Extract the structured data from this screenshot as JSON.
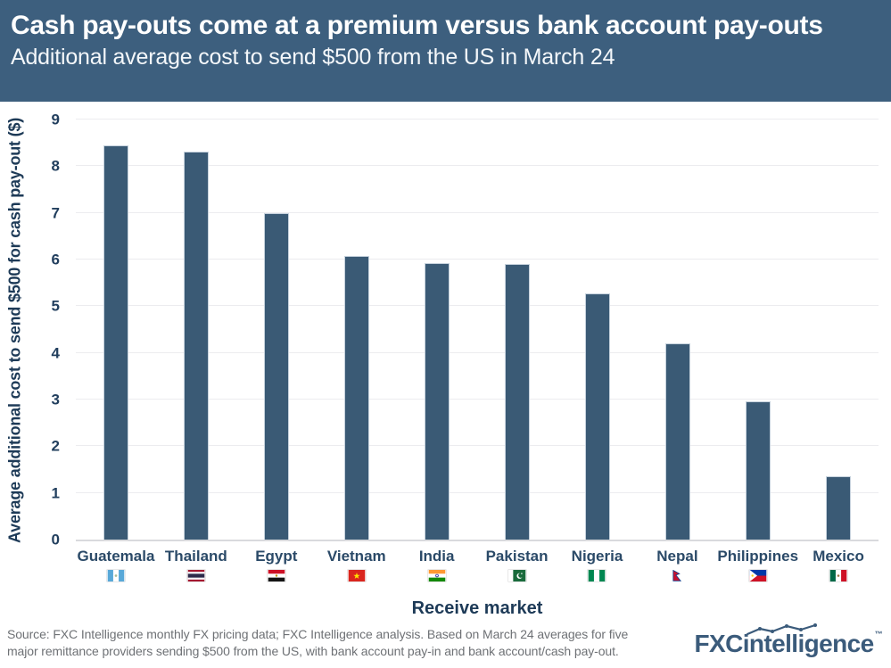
{
  "header": {
    "title": "Cash pay-outs come at a premium versus bank account pay-outs",
    "subtitle": "Additional average cost to send $500 from the US in March 24"
  },
  "chart_data": {
    "type": "bar",
    "title": "Cash pay-outs come at a premium versus bank account pay-outs",
    "subtitle": "Additional average cost to send $500 from the US in March 24",
    "categories": [
      "Guatemala",
      "Thailand",
      "Egypt",
      "Vietnam",
      "India",
      "Pakistan",
      "Nigeria",
      "Nepal",
      "Philippines",
      "Mexico"
    ],
    "values": [
      8.45,
      8.32,
      7.0,
      6.08,
      5.93,
      5.9,
      5.27,
      4.21,
      2.96,
      1.36
    ],
    "flags": [
      "guatemala",
      "thailand",
      "egypt",
      "vietnam",
      "india",
      "pakistan",
      "nigeria",
      "nepal",
      "philippines",
      "mexico"
    ],
    "xlabel": "Receive market",
    "ylabel": "Average additional cost to send $500 for cash pay-out ($)",
    "ylim": [
      0,
      9
    ],
    "yticks": [
      0,
      1,
      2,
      3,
      4,
      5,
      6,
      7,
      8,
      9
    ],
    "grid": true,
    "legend": "none",
    "bar_color": "#3a5a75"
  },
  "colors": {
    "header_bg": "#3d5f7e",
    "bar": "#3a5a75",
    "gridline": "#ececef",
    "axis_text": "#223f5e",
    "footer_text": "#6e7175",
    "logo": "#3b5b7b"
  },
  "footer": {
    "source_line1": "Source: FXC Intelligence monthly FX pricing data; FXC Intelligence analysis. Based on March 24 averages for five",
    "source_line2": "major remittance providers sending $500 from the US, with bank account pay-in and bank account/cash pay-out.",
    "logo_part1": "FXC",
    "logo_part2": "intelligence",
    "logo_mark": "™"
  }
}
